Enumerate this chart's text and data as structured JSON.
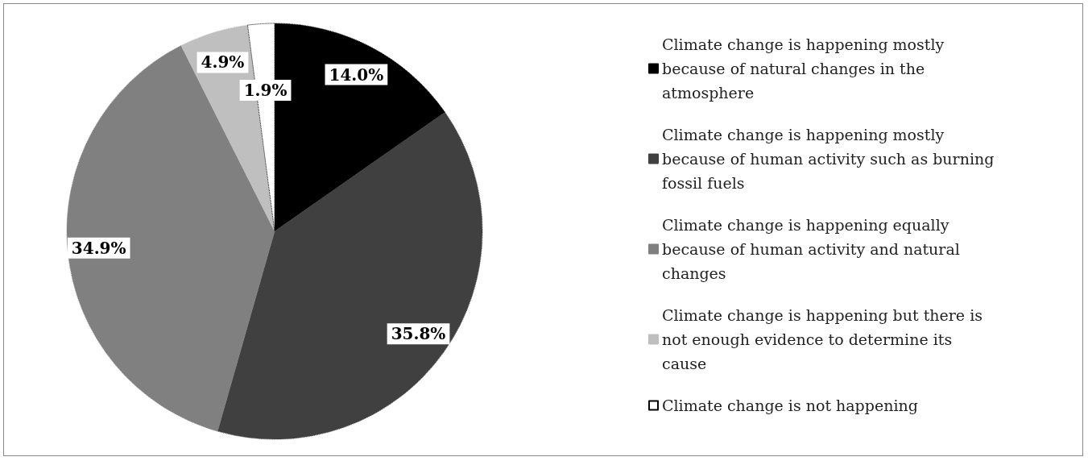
{
  "chart_data": {
    "type": "pie",
    "categories": [
      "Climate change is happening mostly because of natural changes in the atmosphere",
      "Climate change is happening mostly because of human activity such as burning fossil fuels",
      "Climate change is happening equally because of human activity and natural changes",
      "Climate change is happening but there is not enough evidence to determine its cause",
      "Climate change is not happening"
    ],
    "values": [
      14.0,
      35.8,
      34.9,
      4.9,
      1.9
    ],
    "value_labels": [
      "14.0%",
      "35.8%",
      "34.9%",
      "4.9%",
      "1.9%"
    ],
    "colors": [
      "#000000",
      "#404040",
      "#808080",
      "#bfbfbf",
      "#ffffff"
    ],
    "legend": "right"
  }
}
